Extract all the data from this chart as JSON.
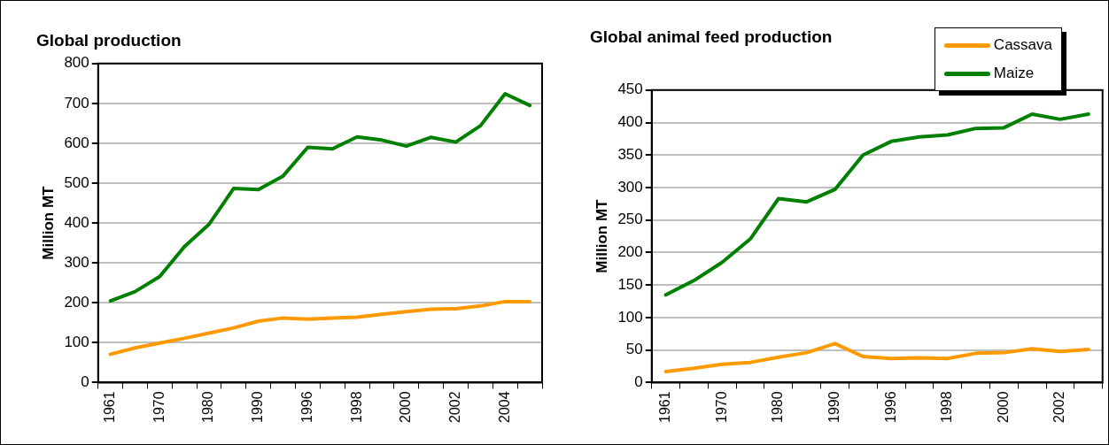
{
  "chart_data": [
    {
      "type": "line",
      "title": "Global production",
      "ylabel": "Million MT",
      "categories": [
        "1961",
        null,
        "1970",
        null,
        "1980",
        null,
        "1990",
        null,
        "1996",
        null,
        "1998",
        null,
        "2000",
        null,
        "2002",
        null,
        "2004",
        null
      ],
      "series": [
        {
          "color": "#ff9900",
          "values": [
            71,
            87,
            99,
            111,
            124,
            137,
            154,
            162,
            159,
            162,
            164,
            171,
            178,
            184,
            185,
            192,
            203,
            203
          ]
        },
        {
          "color": "#008000",
          "values": [
            205,
            228,
            266,
            341,
            397,
            487,
            484,
            518,
            590,
            586,
            616,
            608,
            593,
            615,
            603,
            644,
            724,
            695
          ]
        }
      ],
      "ylim": [
        0,
        800
      ],
      "yticks": [
        0,
        100,
        200,
        300,
        400,
        500,
        600,
        700,
        800
      ],
      "grid": "y",
      "legend": false,
      "marker": "none",
      "line_style": "solid"
    },
    {
      "type": "line",
      "title": "Global animal feed production",
      "ylabel": "Million MT",
      "categories": [
        "1961",
        null,
        "1970",
        null,
        "1980",
        null,
        "1990",
        null,
        "1996",
        null,
        "1998",
        null,
        "2000",
        null,
        "2002",
        null
      ],
      "series": [
        {
          "name": "Cassava",
          "color": "#ff9900",
          "values": [
            17,
            22,
            28,
            31,
            39,
            46,
            60,
            40,
            37,
            38,
            37,
            45,
            46,
            52,
            48,
            51
          ]
        },
        {
          "name": "Maize",
          "color": "#008000",
          "values": [
            135,
            157,
            185,
            221,
            283,
            278,
            297,
            350,
            371,
            378,
            381,
            391,
            392,
            413,
            405,
            413
          ]
        }
      ],
      "ylim": [
        0,
        450
      ],
      "yticks": [
        0,
        50,
        100,
        150,
        200,
        250,
        300,
        350,
        400,
        450
      ],
      "grid": "y",
      "legend": "top right",
      "marker": "none",
      "line_style": "solid"
    }
  ]
}
